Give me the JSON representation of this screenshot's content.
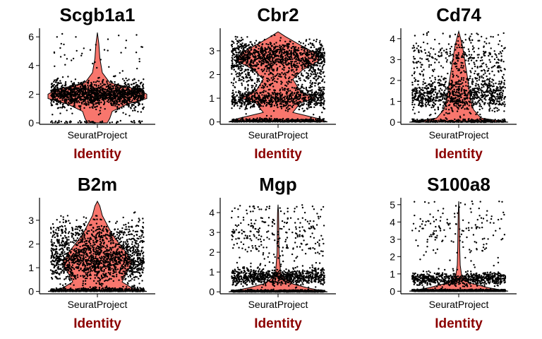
{
  "style": {
    "violin_fill": "#F8766D",
    "point_color": "#000000",
    "xlabel_color": "#8B0000"
  },
  "chart_data": [
    {
      "type": "violin",
      "title": "Scgb1a1",
      "categories": [
        "SeuratProject"
      ],
      "xlabel": "Identity",
      "ylim": [
        -0.1,
        6.6
      ],
      "yticks": [
        0,
        2,
        4,
        6
      ],
      "profile": [
        [
          0,
          0.2
        ],
        [
          0.3,
          0.25
        ],
        [
          0.8,
          0.3
        ],
        [
          1.3,
          0.6
        ],
        [
          1.7,
          1.0
        ],
        [
          2.0,
          1.0
        ],
        [
          2.3,
          0.85
        ],
        [
          2.8,
          0.25
        ],
        [
          3.5,
          0.1
        ],
        [
          4.5,
          0.05
        ],
        [
          5.5,
          0.03
        ],
        [
          6.3,
          0.0
        ]
      ],
      "points": {
        "clusters": [
          {
            "center": 2.0,
            "spread": 0.45,
            "count": 1500
          },
          {
            "center": 5.0,
            "spread": 0.8,
            "count": 40
          },
          {
            "center": 0.05,
            "spread": 0.05,
            "count": 60
          }
        ]
      }
    },
    {
      "type": "violin",
      "title": "Cbr2",
      "categories": [
        "SeuratProject"
      ],
      "xlabel": "Identity",
      "ylim": [
        -0.1,
        3.95
      ],
      "yticks": [
        0,
        1,
        2,
        3
      ],
      "profile": [
        [
          0,
          1.0
        ],
        [
          0.15,
          0.8
        ],
        [
          0.4,
          0.3
        ],
        [
          0.8,
          0.45
        ],
        [
          1.0,
          0.75
        ],
        [
          1.3,
          0.45
        ],
        [
          1.8,
          0.3
        ],
        [
          2.2,
          0.5
        ],
        [
          2.6,
          0.85
        ],
        [
          2.9,
          0.75
        ],
        [
          3.3,
          0.4
        ],
        [
          3.6,
          0.15
        ],
        [
          3.8,
          0.0
        ]
      ],
      "points": {
        "clusters": [
          {
            "center": 0.05,
            "spread": 0.05,
            "count": 400
          },
          {
            "center": 0.95,
            "spread": 0.2,
            "count": 700
          },
          {
            "center": 2.0,
            "spread": 0.5,
            "count": 500
          },
          {
            "center": 2.8,
            "spread": 0.3,
            "count": 900
          }
        ]
      }
    },
    {
      "type": "violin",
      "title": "Cd74",
      "categories": [
        "SeuratProject"
      ],
      "xlabel": "Identity",
      "ylim": [
        -0.1,
        4.5
      ],
      "yticks": [
        0,
        1,
        2,
        3,
        4
      ],
      "profile": [
        [
          0,
          1.0
        ],
        [
          0.2,
          0.45
        ],
        [
          0.6,
          0.3
        ],
        [
          1.0,
          0.25
        ],
        [
          1.4,
          0.22
        ],
        [
          1.8,
          0.2
        ],
        [
          2.4,
          0.16
        ],
        [
          3.0,
          0.12
        ],
        [
          3.6,
          0.08
        ],
        [
          4.0,
          0.04
        ],
        [
          4.35,
          0.0
        ]
      ],
      "points": {
        "clusters": [
          {
            "center": 0.05,
            "spread": 0.05,
            "count": 300
          },
          {
            "center": 1.3,
            "spread": 0.4,
            "count": 900
          },
          {
            "center": 3.0,
            "spread": 0.6,
            "count": 350
          }
        ]
      }
    },
    {
      "type": "violin",
      "title": "B2m",
      "categories": [
        "SeuratProject"
      ],
      "xlabel": "Identity",
      "ylim": [
        -0.1,
        3.95
      ],
      "yticks": [
        0,
        1,
        2,
        3
      ],
      "profile": [
        [
          0,
          1.0
        ],
        [
          0.15,
          0.7
        ],
        [
          0.4,
          0.5
        ],
        [
          0.8,
          0.6
        ],
        [
          1.2,
          0.7
        ],
        [
          1.6,
          0.6
        ],
        [
          2.0,
          0.45
        ],
        [
          2.4,
          0.3
        ],
        [
          2.8,
          0.2
        ],
        [
          3.2,
          0.1
        ],
        [
          3.6,
          0.05
        ],
        [
          3.8,
          0.0
        ]
      ],
      "points": {
        "clusters": [
          {
            "center": 0.05,
            "spread": 0.05,
            "count": 400
          },
          {
            "center": 1.2,
            "spread": 0.45,
            "count": 1200
          },
          {
            "center": 2.3,
            "spread": 0.4,
            "count": 500
          }
        ]
      }
    },
    {
      "type": "violin",
      "title": "Mgp",
      "categories": [
        "SeuratProject"
      ],
      "xlabel": "Identity",
      "ylim": [
        -0.1,
        4.75
      ],
      "yticks": [
        0,
        1,
        2,
        3,
        4
      ],
      "profile": [
        [
          0,
          1.0
        ],
        [
          0.2,
          0.6
        ],
        [
          0.4,
          0.3
        ],
        [
          0.7,
          0.12
        ],
        [
          1.0,
          0.05
        ],
        [
          2.0,
          0.02
        ],
        [
          3.0,
          0.015
        ],
        [
          4.0,
          0.01
        ],
        [
          4.4,
          0.0
        ]
      ],
      "points": {
        "clusters": [
          {
            "center": 0.03,
            "spread": 0.03,
            "count": 900
          },
          {
            "center": 0.75,
            "spread": 0.2,
            "count": 800
          },
          {
            "center": 2.8,
            "spread": 0.9,
            "count": 300
          }
        ]
      }
    },
    {
      "type": "violin",
      "title": "S100a8",
      "categories": [
        "SeuratProject"
      ],
      "xlabel": "Identity",
      "ylim": [
        -0.15,
        5.4
      ],
      "yticks": [
        0,
        1,
        2,
        3,
        4,
        5
      ],
      "profile": [
        [
          0,
          1.0
        ],
        [
          0.2,
          0.6
        ],
        [
          0.5,
          0.2
        ],
        [
          0.9,
          0.06
        ],
        [
          1.5,
          0.03
        ],
        [
          2.5,
          0.02
        ],
        [
          3.5,
          0.015
        ],
        [
          4.5,
          0.01
        ],
        [
          5.2,
          0.0
        ]
      ],
      "points": {
        "clusters": [
          {
            "center": 0.03,
            "spread": 0.03,
            "count": 1200
          },
          {
            "center": 0.7,
            "spread": 0.2,
            "count": 700
          },
          {
            "center": 3.5,
            "spread": 1.0,
            "count": 160
          }
        ]
      }
    }
  ]
}
